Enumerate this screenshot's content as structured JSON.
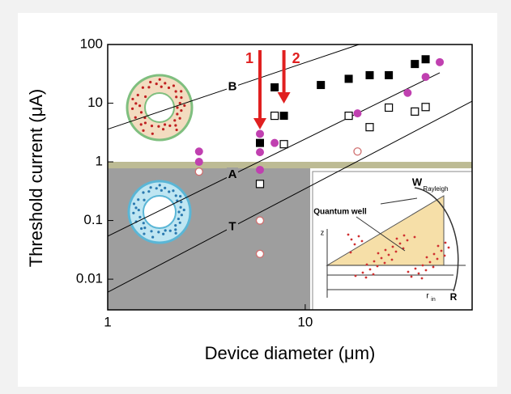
{
  "chart_data": {
    "type": "scatter",
    "xlabel": "Device diameter (μm)",
    "ylabel": "Threshold current (μA)",
    "log_x": true,
    "log_y": true,
    "xlim": [
      1,
      70
    ],
    "ylim": [
      0.003,
      100
    ],
    "xticks": [
      1,
      10
    ],
    "yticks": [
      0.01,
      0.1,
      1,
      10,
      100
    ],
    "series": [
      {
        "marker": "filled-square",
        "color": "#000000",
        "x": [
          5.9,
          7.0,
          7.8,
          12,
          16.6,
          21.2,
          26.5,
          35.9,
          40.7
        ],
        "values": [
          2.1,
          18.6,
          6.1,
          20.4,
          26,
          30,
          30,
          46.5,
          56
        ]
      },
      {
        "marker": "open-square",
        "color": "#000000",
        "x": [
          5.9,
          7.0,
          7.8,
          16.6,
          21.2,
          26.5,
          35.9,
          40.7
        ],
        "values": [
          0.42,
          6.1,
          2.0,
          6.1,
          3.9,
          8.4,
          7.2,
          8.6
        ]
      },
      {
        "marker": "filled-circle",
        "color": "#c040b0",
        "x": [
          2.9,
          2.9,
          5.9,
          5.9,
          5.9,
          7.0,
          18.4,
          33,
          40.7,
          48
        ],
        "values": [
          1.5,
          1.0,
          3.0,
          1.46,
          0.73,
          2.1,
          6.7,
          15,
          28,
          50
        ]
      },
      {
        "marker": "open-circle",
        "color": "#d07070",
        "x": [
          2.9,
          5.9,
          5.9,
          18.4
        ],
        "values": [
          0.68,
          0.1,
          0.027,
          1.5
        ]
      }
    ],
    "fit_lines": [
      {
        "label": "B",
        "x": [
          1,
          18.7
        ],
        "y": [
          3.6,
          100
        ]
      },
      {
        "label": "A",
        "x": [
          1,
          48
        ],
        "y": [
          0.054,
          33
        ]
      },
      {
        "label": "T",
        "x": [
          1,
          70
        ],
        "y": [
          0.006,
          10.8
        ]
      }
    ],
    "shaded_region": {
      "x": [
        1,
        10.6
      ],
      "y": [
        0.003,
        1
      ]
    },
    "arrows": [
      {
        "label": "1",
        "x": 5.9
      },
      {
        "label": "2",
        "x": 7.8
      }
    ],
    "inset_labels": [
      "W",
      "Rayleigh",
      "Quantum well",
      "z",
      "r",
      "in",
      "R"
    ]
  }
}
